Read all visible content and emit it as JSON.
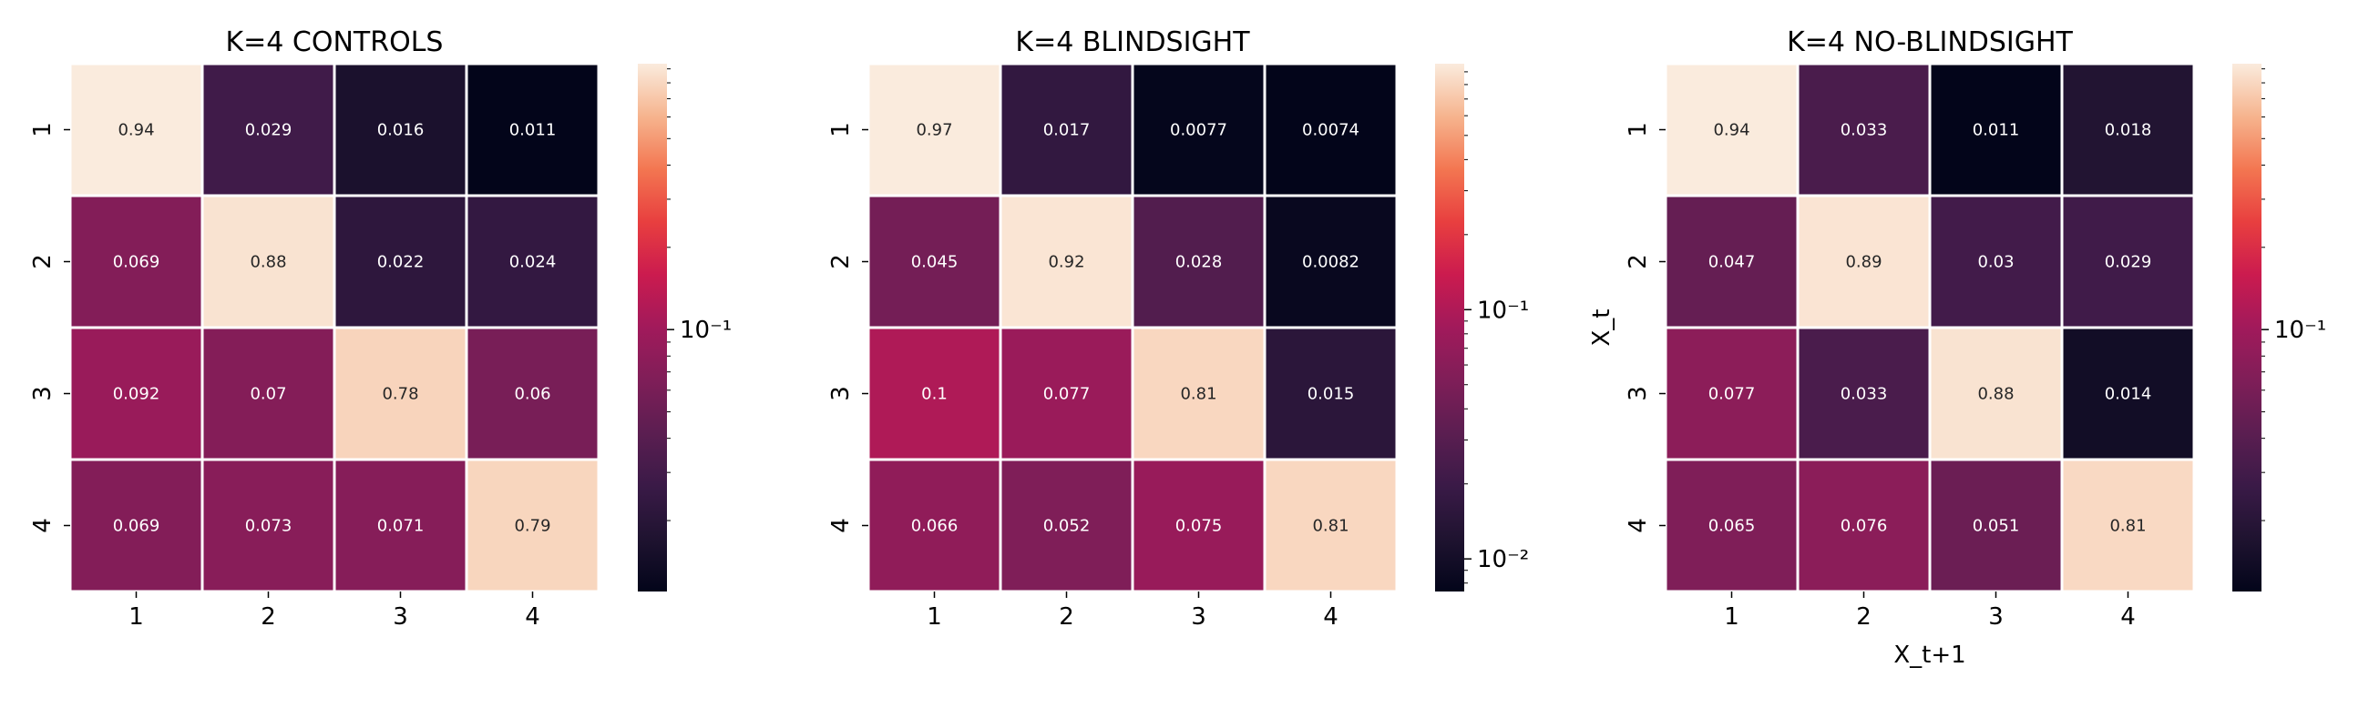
{
  "chart_data": [
    {
      "type": "heatmap",
      "title": "K=4 CONTROLS",
      "x_categories": [
        "1",
        "2",
        "3",
        "4"
      ],
      "y_categories": [
        "1",
        "2",
        "3",
        "4"
      ],
      "values": [
        [
          0.94,
          0.029,
          0.016,
          0.011
        ],
        [
          0.069,
          0.88,
          0.022,
          0.024
        ],
        [
          0.092,
          0.07,
          0.78,
          0.06
        ],
        [
          0.069,
          0.073,
          0.071,
          0.79
        ]
      ],
      "labels": [
        [
          "0.94",
          "0.029",
          "0.016",
          "0.011"
        ],
        [
          "0.069",
          "0.88",
          "0.022",
          "0.024"
        ],
        [
          "0.092",
          "0.07",
          "0.78",
          "0.06"
        ],
        [
          "0.069",
          "0.073",
          "0.071",
          "0.79"
        ]
      ],
      "xlabel": "",
      "ylabel": "",
      "colorbar": {
        "scale": "log",
        "range": [
          0.011,
          0.94
        ],
        "tick_labels": [
          "10⁻¹"
        ],
        "tick_values": [
          0.1
        ]
      },
      "colormap": "rocket",
      "grid": false
    },
    {
      "type": "heatmap",
      "title": "K=4 BLINDSIGHT",
      "x_categories": [
        "1",
        "2",
        "3",
        "4"
      ],
      "y_categories": [
        "1",
        "2",
        "3",
        "4"
      ],
      "values": [
        [
          0.97,
          0.017,
          0.0077,
          0.0074
        ],
        [
          0.045,
          0.92,
          0.028,
          0.0082
        ],
        [
          0.1,
          0.077,
          0.81,
          0.015
        ],
        [
          0.066,
          0.052,
          0.075,
          0.81
        ]
      ],
      "labels": [
        [
          "0.97",
          "0.017",
          "0.0077",
          "0.0074"
        ],
        [
          "0.045",
          "0.92",
          "0.028",
          "0.0082"
        ],
        [
          "0.1",
          "0.077",
          "0.81",
          "0.015"
        ],
        [
          "0.066",
          "0.052",
          "0.075",
          "0.81"
        ]
      ],
      "xlabel": "",
      "ylabel": "",
      "colorbar": {
        "scale": "log",
        "range": [
          0.0074,
          0.97
        ],
        "tick_labels": [
          "10⁻²",
          "10⁻¹"
        ],
        "tick_values": [
          0.01,
          0.1
        ]
      },
      "colormap": "rocket",
      "grid": false
    },
    {
      "type": "heatmap",
      "title": "K=4 NO-BLINDSIGHT",
      "x_categories": [
        "1",
        "2",
        "3",
        "4"
      ],
      "y_categories": [
        "1",
        "2",
        "3",
        "4"
      ],
      "values": [
        [
          0.94,
          0.033,
          0.011,
          0.018
        ],
        [
          0.047,
          0.89,
          0.03,
          0.029
        ],
        [
          0.077,
          0.033,
          0.88,
          0.014
        ],
        [
          0.065,
          0.076,
          0.051,
          0.81
        ]
      ],
      "labels": [
        [
          "0.94",
          "0.033",
          "0.011",
          "0.018"
        ],
        [
          "0.047",
          "0.89",
          "0.03",
          "0.029"
        ],
        [
          "0.077",
          "0.033",
          "0.88",
          "0.014"
        ],
        [
          "0.065",
          "0.076",
          "0.051",
          "0.81"
        ]
      ],
      "xlabel": "X_t+1",
      "ylabel": "X_t",
      "colorbar": {
        "scale": "log",
        "range": [
          0.011,
          0.94
        ],
        "tick_labels": [
          "10⁻¹"
        ],
        "tick_values": [
          0.1
        ]
      },
      "colormap": "rocket",
      "grid": false
    }
  ]
}
